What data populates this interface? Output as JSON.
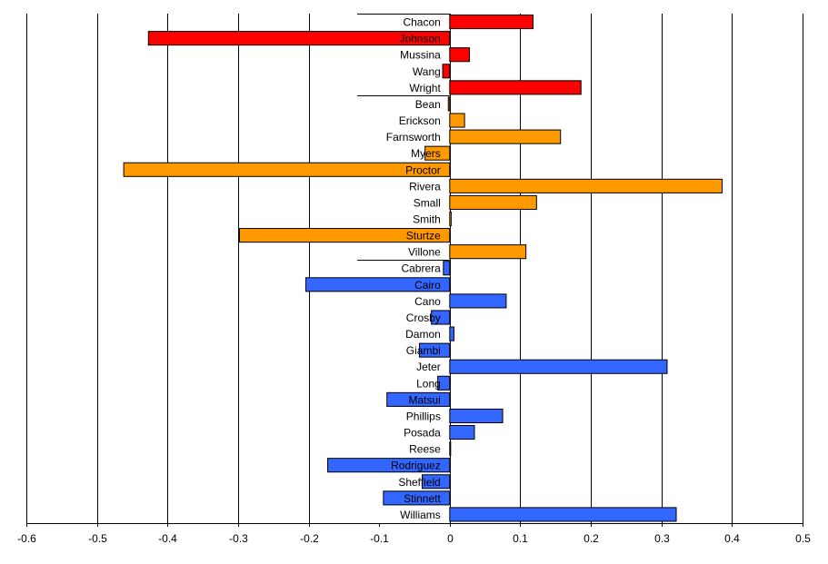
{
  "chart_data": {
    "type": "bar",
    "orientation": "horizontal",
    "xlim": [
      -0.6,
      0.5
    ],
    "x_ticks": [
      "-0.6",
      "-0.5",
      "-0.4",
      "-0.3",
      "-0.2",
      "-0.1",
      "0",
      "0.1",
      "0.2",
      "0.3",
      "0.4",
      "0.5"
    ],
    "grid": true,
    "legend": "none",
    "group_colors": [
      "#ff0000",
      "#ff9900",
      "#3366ff"
    ],
    "categories": [
      "Chacon",
      "Johnson",
      "Mussina",
      "Wang",
      "Wright",
      "Bean",
      "Erickson",
      "Farnsworth",
      "Myers",
      "Proctor",
      "Rivera",
      "Small",
      "Smith",
      "Sturtze",
      "Villone",
      "Cabrera",
      "Cairo",
      "Cano",
      "Crosby",
      "Damon",
      "Giambi",
      "Jeter",
      "Long",
      "Matsui",
      "Phillips",
      "Posada",
      "Reese",
      "Rodriguez",
      "Sheffield",
      "Stinnett",
      "Williams"
    ],
    "values": [
      0.118,
      -0.427,
      0.028,
      -0.01,
      0.186,
      -0.002,
      0.021,
      0.157,
      -0.035,
      -0.462,
      0.386,
      0.123,
      0.002,
      -0.298,
      0.108,
      -0.009,
      -0.204,
      0.08,
      -0.026,
      0.006,
      -0.043,
      0.308,
      -0.017,
      -0.089,
      0.075,
      0.035,
      0.001,
      -0.173,
      -0.039,
      -0.094,
      0.321
    ],
    "groups": [
      0,
      0,
      0,
      0,
      0,
      1,
      1,
      1,
      1,
      1,
      1,
      1,
      1,
      1,
      1,
      2,
      2,
      2,
      2,
      2,
      2,
      2,
      2,
      2,
      2,
      2,
      2,
      2,
      2,
      2,
      2
    ]
  }
}
